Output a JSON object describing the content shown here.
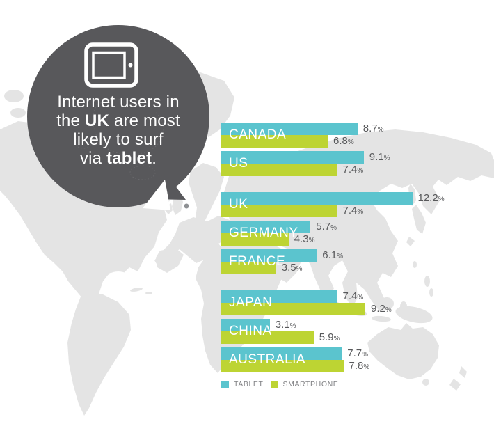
{
  "bubble": {
    "lines": [
      [
        {
          "t": "Internet users in",
          "b": false
        }
      ],
      [
        {
          "t": "the ",
          "b": false
        },
        {
          "t": "UK",
          "b": true
        },
        {
          "t": " are most",
          "b": false
        }
      ],
      [
        {
          "t": "likely to surf",
          "b": false
        }
      ],
      [
        {
          "t": "via ",
          "b": false
        },
        {
          "t": "tablet",
          "b": true
        },
        {
          "t": ".",
          "b": false
        }
      ]
    ],
    "icon": "tablet-icon"
  },
  "chart_data": {
    "type": "bar",
    "orientation": "horizontal",
    "unit": "%",
    "title": "Internet users in the UK are most likely to surf via tablet.",
    "categories": [
      "CANADA",
      "US",
      "UK",
      "GERMANY",
      "FRANCE",
      "JAPAN",
      "CHINA",
      "AUSTRALIA"
    ],
    "series": [
      {
        "name": "TABLET",
        "color": "#5bc4ce",
        "values": [
          8.7,
          9.1,
          12.2,
          5.7,
          6.1,
          7.4,
          3.1,
          7.7
        ]
      },
      {
        "name": "SMARTPHONE",
        "color": "#bdd433",
        "values": [
          6.8,
          7.4,
          7.4,
          4.3,
          3.5,
          9.2,
          5.9,
          7.8
        ]
      }
    ],
    "groups": [
      [
        "CANADA",
        "US"
      ],
      [
        "UK",
        "GERMANY",
        "FRANCE"
      ],
      [
        "JAPAN",
        "CHINA",
        "AUSTRALIA"
      ]
    ],
    "xlim": [
      0,
      13
    ],
    "grid": false,
    "value_labels": true,
    "legend_position": "bottom-left"
  },
  "colors": {
    "tablet": "#5bc4ce",
    "smartphone": "#bdd433",
    "bubble": "#58585b",
    "bubble_text": "#ffffff",
    "land": "#e4e4e4",
    "value_text": "#58595b",
    "legend_text": "#808184",
    "marker": "#8e9093"
  }
}
